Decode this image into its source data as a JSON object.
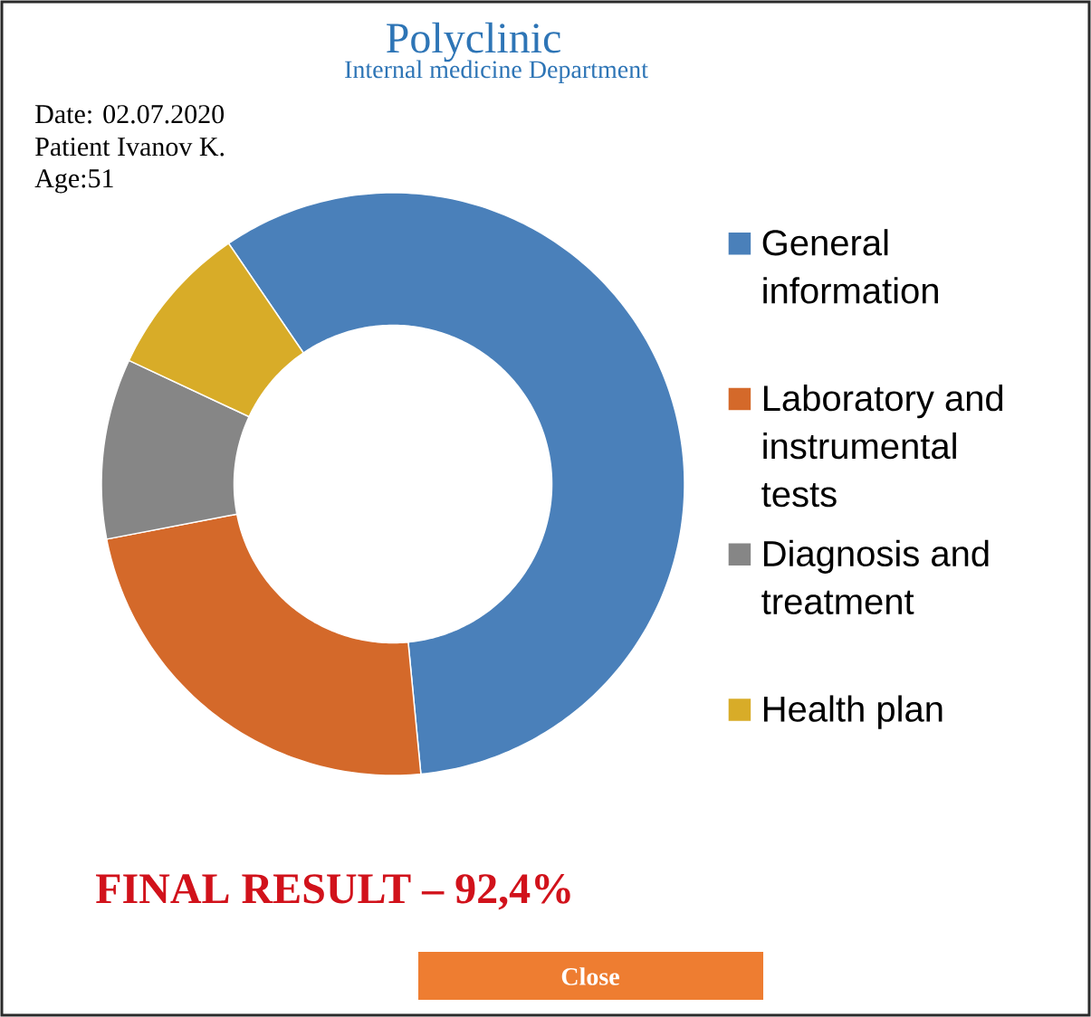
{
  "chart_data": {
    "type": "donut",
    "title": "Polyclinic",
    "subtitle": "Internal medicine Department",
    "categories": [
      "General information",
      "Laboratory and instrumental tests",
      "Diagnosis and treatment",
      "Health plan"
    ],
    "values": [
      58,
      23.5,
      10,
      8.5
    ],
    "colors": [
      "#4a80ba",
      "#d4692a",
      "#868686",
      "#d8ac28"
    ],
    "legend": "right",
    "annotations": [
      "Date: 02.07.2020",
      "Patient Ivanov K.",
      "Age:51",
      "FINAL RESULT – 92,4%",
      "Close"
    ]
  }
}
